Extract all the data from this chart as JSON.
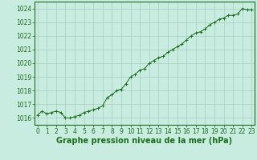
{
  "x": [
    0,
    0.5,
    1,
    1.5,
    2,
    2.5,
    3,
    3.5,
    4,
    4.5,
    5,
    5.5,
    6,
    6.5,
    7,
    7.5,
    8,
    8.5,
    9,
    9.5,
    10,
    10.5,
    11,
    11.5,
    12,
    12.5,
    13,
    13.5,
    14,
    14.5,
    15,
    15.5,
    16,
    16.5,
    17,
    17.5,
    18,
    18.5,
    19,
    19.5,
    20,
    20.5,
    21,
    21.5,
    22,
    22.5,
    23
  ],
  "y": [
    1016.2,
    1016.5,
    1016.3,
    1016.4,
    1016.5,
    1016.4,
    1016.0,
    1016.0,
    1016.1,
    1016.2,
    1016.4,
    1016.5,
    1016.6,
    1016.7,
    1016.9,
    1017.5,
    1017.7,
    1018.0,
    1018.1,
    1018.5,
    1019.0,
    1019.2,
    1019.5,
    1019.6,
    1020.0,
    1020.2,
    1020.4,
    1020.5,
    1020.8,
    1021.0,
    1021.2,
    1021.4,
    1021.7,
    1022.0,
    1022.2,
    1022.3,
    1022.5,
    1022.8,
    1023.0,
    1023.2,
    1023.3,
    1023.5,
    1023.5,
    1023.6,
    1024.0,
    1023.9,
    1023.9
  ],
  "line_color": "#1a6e1a",
  "marker_color": "#1a6e1a",
  "bg_color": "#c8ece0",
  "grid_color": "#a8cfc0",
  "xlabel": "Graphe pression niveau de la mer (hPa)",
  "xlabel_fontsize": 7,
  "ylim": [
    1015.5,
    1024.5
  ],
  "xlim": [
    -0.3,
    23.3
  ],
  "yticks": [
    1016,
    1017,
    1018,
    1019,
    1020,
    1021,
    1022,
    1023,
    1024
  ],
  "xticks": [
    0,
    1,
    2,
    3,
    4,
    5,
    6,
    7,
    8,
    9,
    10,
    11,
    12,
    13,
    14,
    15,
    16,
    17,
    18,
    19,
    20,
    21,
    22,
    23
  ],
  "tick_fontsize": 5.5,
  "axis_color": "#1a6e1a",
  "border_color": "#1a6e1a"
}
